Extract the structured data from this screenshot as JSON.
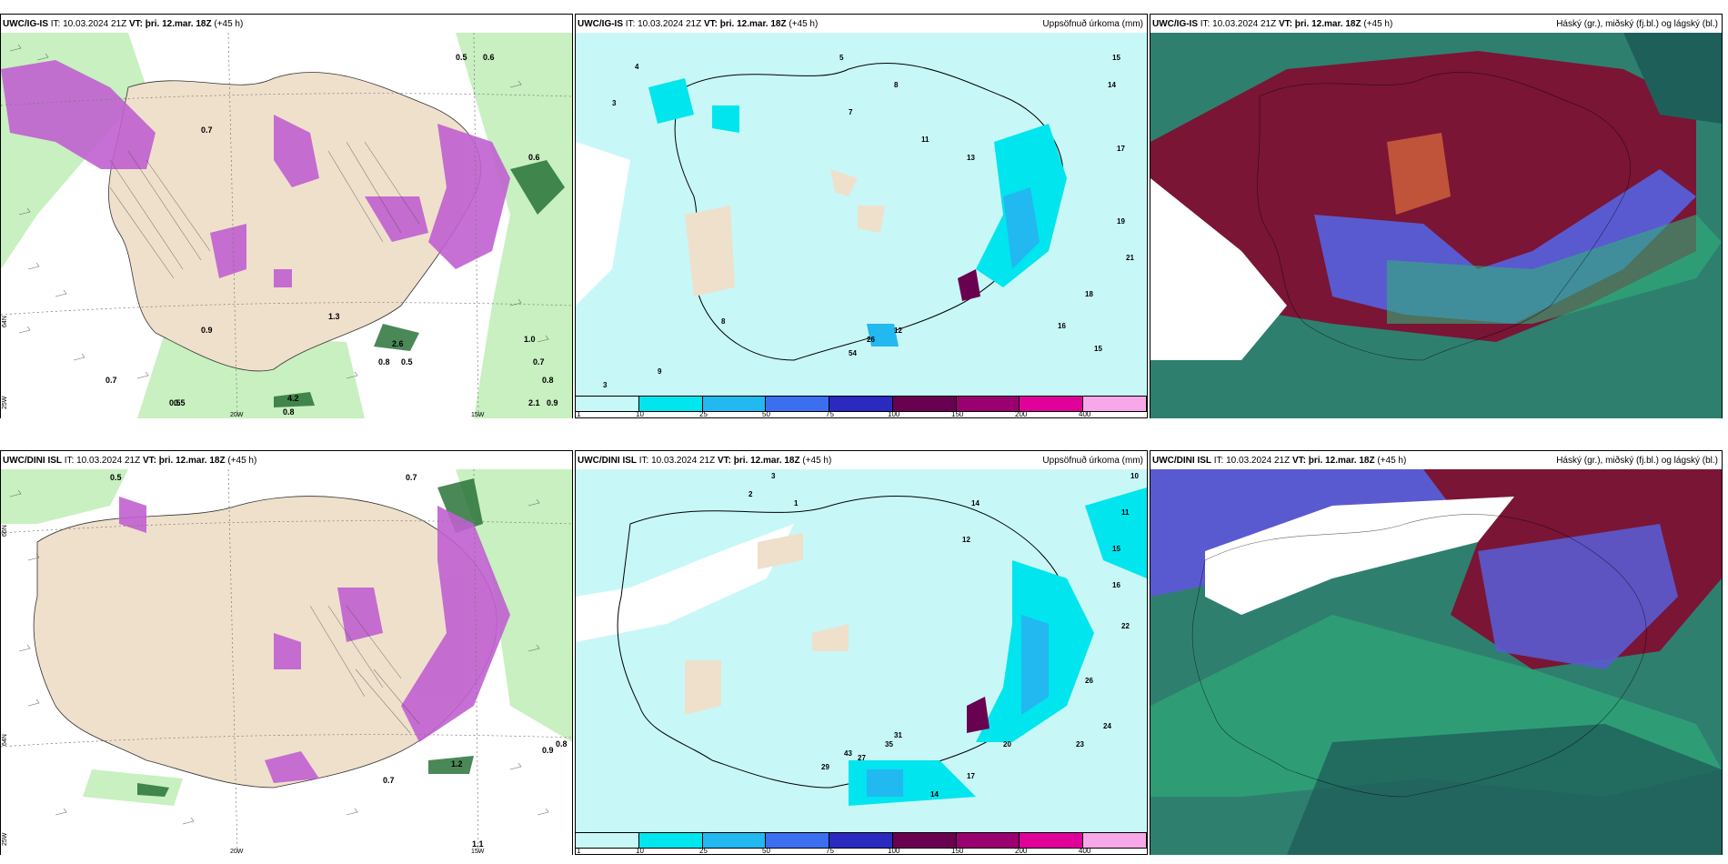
{
  "panels": [
    {
      "model": "UWC/IG-IS",
      "it_label": "IT:",
      "it": "10.03.2024 21Z",
      "vt_label": "VT:",
      "vt": "þri. 12.mar. 18Z",
      "lead": "(+45 h)",
      "right_title": ""
    },
    {
      "model": "UWC/IG-IS",
      "it_label": "IT:",
      "it": "10.03.2024 21Z",
      "vt_label": "VT:",
      "vt": "þri. 12.mar. 18Z",
      "lead": "(+45 h)",
      "right_title": "Uppsöfnuð úrkoma (mm)"
    },
    {
      "model": "UWC/IG-IS",
      "it_label": "IT:",
      "it": "10.03.2024 21Z",
      "vt_label": "VT:",
      "vt": "þri. 12.mar. 18Z",
      "lead": "(+45 h)",
      "right_title": "Háský (gr.), miðský (fj.bl.) og lágský (bl.)"
    },
    {
      "model": "UWC/DINI ISL",
      "it_label": "IT:",
      "it": "10.03.2024 21Z",
      "vt_label": "VT:",
      "vt": "þri. 12.mar. 18Z",
      "lead": "(+45 h)",
      "right_title": ""
    },
    {
      "model": "UWC/DINI ISL",
      "it_label": "IT:",
      "it": "10.03.2024 21Z",
      "vt_label": "VT:",
      "vt": "þri. 12.mar. 18Z",
      "lead": "(+45 h)",
      "right_title": "Uppsöfnuð úrkoma (mm)"
    },
    {
      "model": "UWC/DINI ISL",
      "it_label": "IT:",
      "it": "10.03.2024 21Z",
      "vt_label": "VT:",
      "vt": "þri. 12.mar. 18Z",
      "lead": "(+45 h)",
      "right_title": "Háský (gr.), miðský (fj.bl.) og lágský (bl.)"
    }
  ],
  "axis_labels": {
    "lon_20w": "20W",
    "lon_15w": "15W",
    "lat_66n": "66N",
    "lat_64n": "64N",
    "lat_25w": "25W"
  },
  "precip_legend": {
    "levels": [
      "1",
      "10",
      "25",
      "50",
      "75",
      "100",
      "150",
      "200",
      "400"
    ],
    "colors": [
      "#c8f7f7",
      "#00e5ee",
      "#22b8f0",
      "#3c6ef0",
      "#2a2ac0",
      "#6a0050",
      "#9a0070",
      "#e0009a",
      "#f7a8e8"
    ]
  },
  "wind_panel": {
    "top_values": [
      "0.5",
      "0.6",
      "0.7",
      "0.9",
      "1.3",
      "2.6",
      "0.8",
      "0.5",
      "1.0",
      "0.7",
      "0.8",
      "0.5",
      "4.2",
      "0.8",
      "2.1",
      "0.9",
      "0.6",
      "0.5",
      "0.7"
    ],
    "bottom_values": [
      "0.7",
      "0.9",
      "0.8",
      "1.2",
      "1.1",
      "0.7",
      "0.5"
    ]
  },
  "precip_panel": {
    "top_values": [
      "4",
      "3",
      "7",
      "5",
      "8",
      "11",
      "13",
      "15",
      "14",
      "17",
      "19",
      "21",
      "18",
      "16",
      "15",
      "12",
      "26",
      "54",
      "9",
      "8",
      "3"
    ],
    "bottom_values": [
      "3",
      "2",
      "1",
      "14",
      "10",
      "11",
      "12",
      "15",
      "16",
      "22",
      "26",
      "24",
      "23",
      "20",
      "17",
      "14",
      "43",
      "35",
      "31",
      "29",
      "27"
    ]
  },
  "colors": {
    "land": "#efe0cc",
    "sea_precip": "#c8f7f7",
    "green_light": "#c8f0c0",
    "green_mid": "#5ac060",
    "green_dark": "#1d6a2e",
    "purple": "#c060d0",
    "cloud_maroon": "#7a1535",
    "cloud_blue": "#5a5ad0",
    "cloud_teal": "#2f7f6f"
  }
}
